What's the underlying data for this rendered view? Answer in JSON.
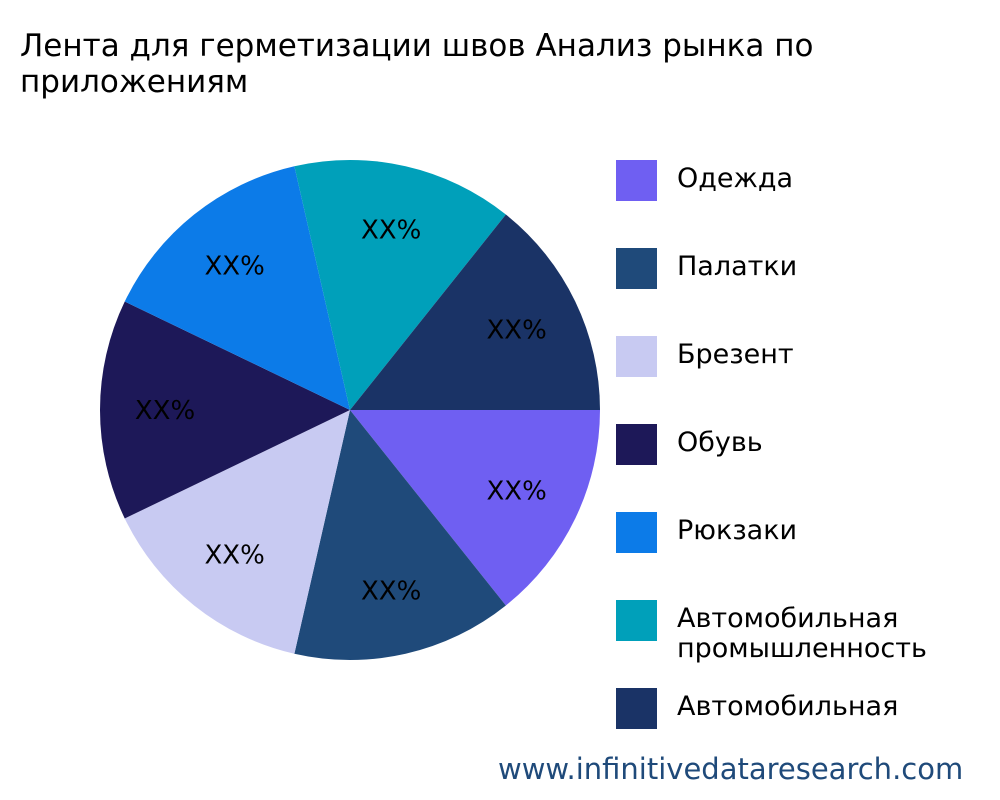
{
  "title": "Лента для герметизации швов Анализ рынка по приложениям",
  "watermark": "www.infinitivedataresearch.com",
  "chart_data": {
    "type": "pie",
    "title": "Лента для герметизации швов Анализ рынка по приложениям",
    "legend_position": "right",
    "slices": [
      {
        "name": "Одежда",
        "value": 1,
        "label": "XX%",
        "color": "#6F5FF2"
      },
      {
        "name": "Палатки",
        "value": 1,
        "label": "XX%",
        "color": "#1F4A7A"
      },
      {
        "name": "Брезент",
        "value": 1,
        "label": "XX%",
        "color": "#C8CAF2"
      },
      {
        "name": "Обувь",
        "value": 1,
        "label": "XX%",
        "color": "#1D1858"
      },
      {
        "name": "Рюкзаки",
        "value": 1,
        "label": "XX%",
        "color": "#0C7BE8"
      },
      {
        "name": "Автомобильная промышленность",
        "value": 1,
        "label": "XX%",
        "color": "#00A0BA"
      },
      {
        "name": "Автомобильная",
        "value": 1,
        "label": "XX%",
        "color": "#1A3366"
      }
    ]
  }
}
